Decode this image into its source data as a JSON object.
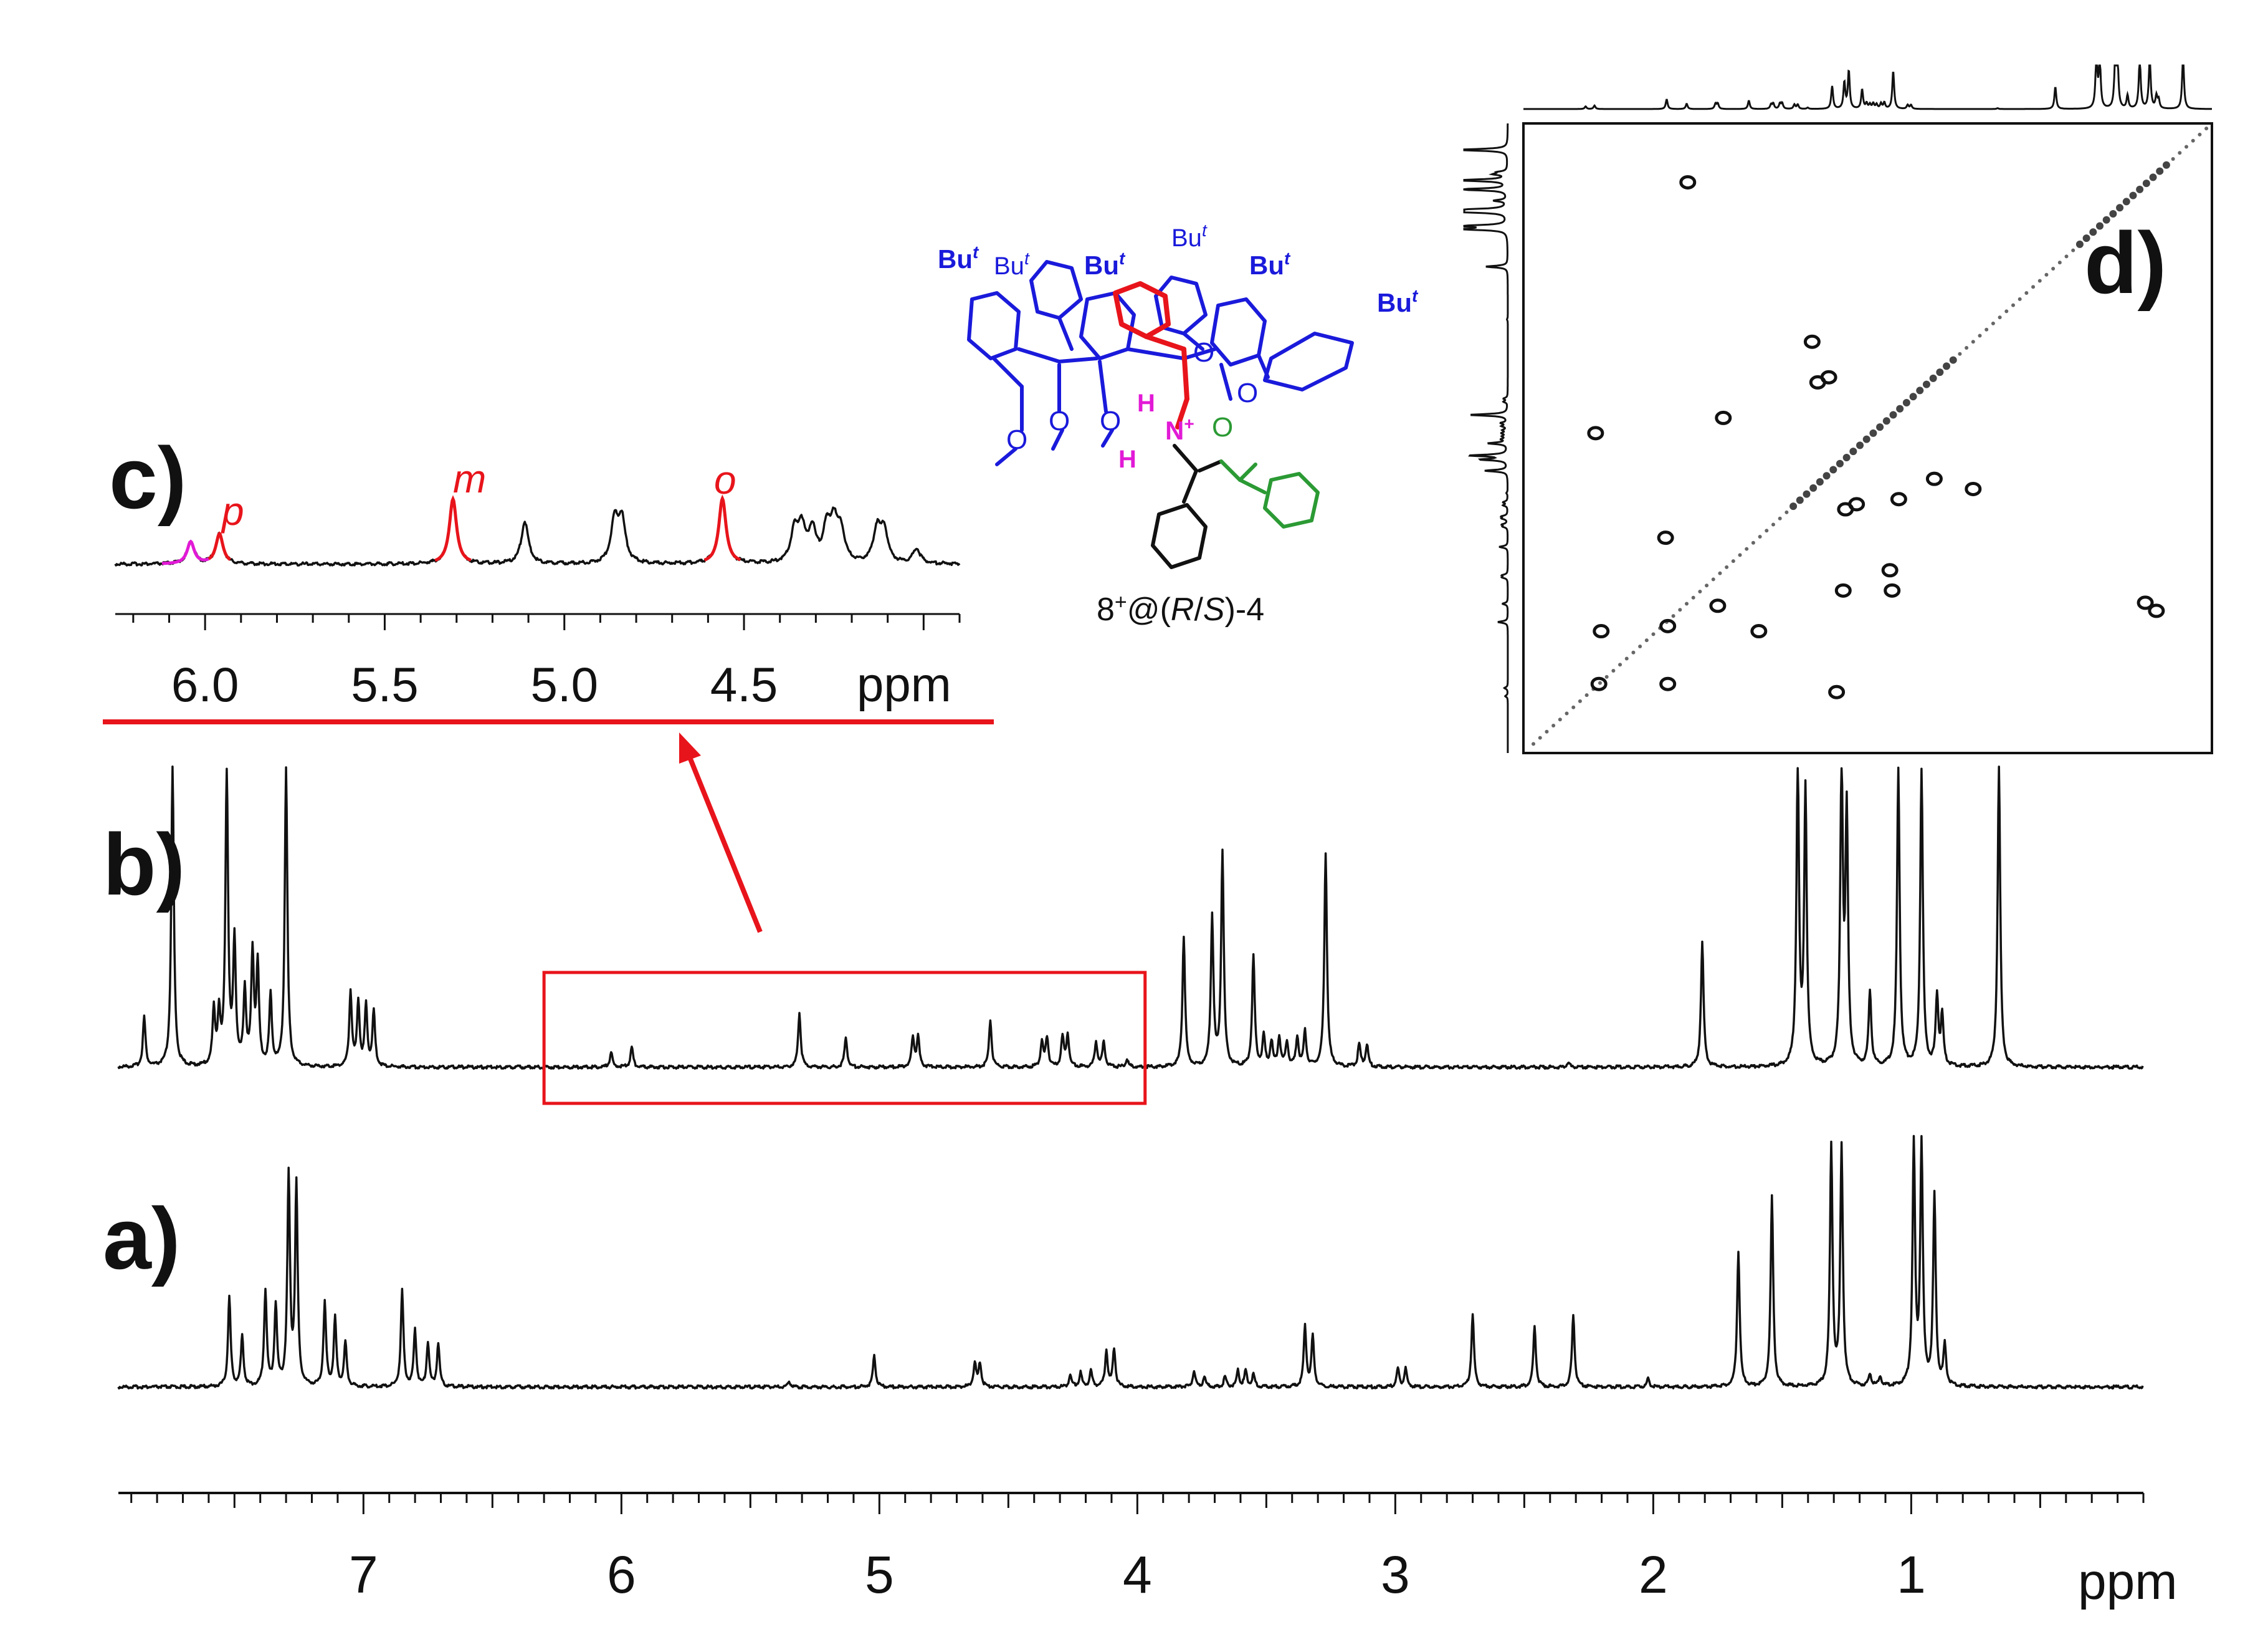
{
  "panels": {
    "a": "a)",
    "b": "b)",
    "c": "c)",
    "d": "d)"
  },
  "structure_label": {
    "prefix": "8",
    "sup": "+",
    "mid": "@(",
    "r": "R",
    "slash": "/",
    "s": "S",
    "suffix": ")-4"
  },
  "structure_text": {
    "but": "Bu",
    "but_sup": "t",
    "oxygen": "O",
    "h1": "H",
    "h2": "H",
    "nplus": "N"
  },
  "peak_labels": {
    "p": "p",
    "m": "m",
    "o": "o"
  },
  "colors": {
    "spectrum": "#111111",
    "highlight": "#e8141b",
    "magenta": "#e21ad6",
    "calixarene": "#1a1adb",
    "green": "#2b9a34"
  },
  "main_axis": {
    "unit": "ppm",
    "reversed": true,
    "range": [
      7.95,
      0.1
    ],
    "ticks": [
      {
        "v": 7,
        "label": "7"
      },
      {
        "v": 6,
        "label": "6"
      },
      {
        "v": 5,
        "label": "5"
      },
      {
        "v": 4,
        "label": "4"
      },
      {
        "v": 3,
        "label": "3"
      },
      {
        "v": 2,
        "label": "2"
      },
      {
        "v": 1,
        "label": "1"
      }
    ]
  },
  "inset_axis": {
    "unit": "ppm",
    "reversed": true,
    "range": [
      6.25,
      3.9
    ],
    "ticks": [
      {
        "v": 6.0,
        "label": "6.0"
      },
      {
        "v": 5.5,
        "label": "5.5"
      },
      {
        "v": 5.0,
        "label": "5.0"
      },
      {
        "v": 4.5,
        "label": "4.5"
      }
    ]
  },
  "zoom_region_ppm": [
    6.3,
    3.97
  ],
  "chart_data": [
    {
      "type": "line",
      "panel": "a)",
      "xlabel": "ppm",
      "xlim": [
        7.95,
        0.1
      ],
      "peaks": [
        {
          "x": 7.52,
          "h": 0.45
        },
        {
          "x": 7.47,
          "h": 0.25
        },
        {
          "x": 7.38,
          "h": 0.48
        },
        {
          "x": 7.34,
          "h": 0.4
        },
        {
          "x": 7.29,
          "h": 1.05
        },
        {
          "x": 7.26,
          "h": 1.0
        },
        {
          "x": 7.15,
          "h": 0.42
        },
        {
          "x": 7.11,
          "h": 0.34
        },
        {
          "x": 7.07,
          "h": 0.22
        },
        {
          "x": 6.85,
          "h": 0.48
        },
        {
          "x": 6.8,
          "h": 0.28
        },
        {
          "x": 6.75,
          "h": 0.22
        },
        {
          "x": 6.71,
          "h": 0.22
        },
        {
          "x": 5.35,
          "h": 0.03
        },
        {
          "x": 5.02,
          "h": 0.16
        },
        {
          "x": 4.63,
          "h": 0.12
        },
        {
          "x": 4.61,
          "h": 0.12
        },
        {
          "x": 4.26,
          "h": 0.06
        },
        {
          "x": 4.22,
          "h": 0.07
        },
        {
          "x": 4.18,
          "h": 0.08
        },
        {
          "x": 4.12,
          "h": 0.18
        },
        {
          "x": 4.09,
          "h": 0.19
        },
        {
          "x": 3.78,
          "h": 0.08
        },
        {
          "x": 3.74,
          "h": 0.05
        },
        {
          "x": 3.66,
          "h": 0.05
        },
        {
          "x": 3.61,
          "h": 0.08
        },
        {
          "x": 3.58,
          "h": 0.08
        },
        {
          "x": 3.55,
          "h": 0.06
        },
        {
          "x": 3.35,
          "h": 0.3
        },
        {
          "x": 3.32,
          "h": 0.25
        },
        {
          "x": 2.99,
          "h": 0.09
        },
        {
          "x": 2.96,
          "h": 0.09
        },
        {
          "x": 2.7,
          "h": 0.36
        },
        {
          "x": 2.46,
          "h": 0.3
        },
        {
          "x": 2.31,
          "h": 0.36
        },
        {
          "x": 2.02,
          "h": 0.04
        },
        {
          "x": 1.67,
          "h": 0.68
        },
        {
          "x": 1.54,
          "h": 0.95
        },
        {
          "x": 1.31,
          "h": 1.2
        },
        {
          "x": 1.27,
          "h": 1.2
        },
        {
          "x": 1.16,
          "h": 0.06
        },
        {
          "x": 1.12,
          "h": 0.05
        },
        {
          "x": 0.99,
          "h": 1.2
        },
        {
          "x": 0.96,
          "h": 1.2
        },
        {
          "x": 0.91,
          "h": 0.95
        },
        {
          "x": 0.87,
          "h": 0.2
        }
      ]
    },
    {
      "type": "line",
      "panel": "b)",
      "xlabel": "ppm",
      "xlim": [
        7.95,
        0.1
      ],
      "peaks": [
        {
          "x": 7.85,
          "h": 0.2
        },
        {
          "x": 7.74,
          "h": 1.2
        },
        {
          "x": 7.58,
          "h": 0.22
        },
        {
          "x": 7.56,
          "h": 0.2
        },
        {
          "x": 7.53,
          "h": 1.2
        },
        {
          "x": 7.5,
          "h": 0.5
        },
        {
          "x": 7.46,
          "h": 0.3
        },
        {
          "x": 7.43,
          "h": 0.45
        },
        {
          "x": 7.41,
          "h": 0.4
        },
        {
          "x": 7.36,
          "h": 0.28
        },
        {
          "x": 7.3,
          "h": 1.2
        },
        {
          "x": 7.05,
          "h": 0.3
        },
        {
          "x": 7.02,
          "h": 0.26
        },
        {
          "x": 6.99,
          "h": 0.24
        },
        {
          "x": 6.96,
          "h": 0.22
        },
        {
          "x": 6.04,
          "h": 0.06
        },
        {
          "x": 5.96,
          "h": 0.08
        },
        {
          "x": 5.31,
          "h": 0.22
        },
        {
          "x": 5.13,
          "h": 0.12
        },
        {
          "x": 4.87,
          "h": 0.12
        },
        {
          "x": 4.85,
          "h": 0.12
        },
        {
          "x": 4.57,
          "h": 0.19
        },
        {
          "x": 4.37,
          "h": 0.1
        },
        {
          "x": 4.35,
          "h": 0.12
        },
        {
          "x": 4.29,
          "h": 0.12
        },
        {
          "x": 4.27,
          "h": 0.13
        },
        {
          "x": 4.16,
          "h": 0.1
        },
        {
          "x": 4.13,
          "h": 0.1
        },
        {
          "x": 4.04,
          "h": 0.03
        },
        {
          "x": 3.82,
          "h": 0.52
        },
        {
          "x": 3.71,
          "h": 0.6
        },
        {
          "x": 3.67,
          "h": 0.86
        },
        {
          "x": 3.55,
          "h": 0.44
        },
        {
          "x": 3.51,
          "h": 0.12
        },
        {
          "x": 3.48,
          "h": 0.1
        },
        {
          "x": 3.45,
          "h": 0.12
        },
        {
          "x": 3.42,
          "h": 0.1
        },
        {
          "x": 3.38,
          "h": 0.12
        },
        {
          "x": 3.35,
          "h": 0.14
        },
        {
          "x": 3.27,
          "h": 0.86
        },
        {
          "x": 3.14,
          "h": 0.09
        },
        {
          "x": 3.11,
          "h": 0.09
        },
        {
          "x": 2.33,
          "h": 0.02
        },
        {
          "x": 1.81,
          "h": 0.5
        },
        {
          "x": 1.44,
          "h": 1.2
        },
        {
          "x": 1.41,
          "h": 1.1
        },
        {
          "x": 1.27,
          "h": 1.2
        },
        {
          "x": 1.25,
          "h": 1.0
        },
        {
          "x": 1.16,
          "h": 0.3
        },
        {
          "x": 1.05,
          "h": 1.2
        },
        {
          "x": 0.96,
          "h": 1.2
        },
        {
          "x": 0.9,
          "h": 0.28
        },
        {
          "x": 0.88,
          "h": 0.2
        },
        {
          "x": 0.66,
          "h": 1.2
        }
      ]
    },
    {
      "type": "line",
      "panel": "c)",
      "xlabel": "ppm",
      "xlim": [
        6.25,
        3.9
      ],
      "peaks": [
        {
          "x": 6.04,
          "h": 0.22
        },
        {
          "x": 5.96,
          "h": 0.3
        },
        {
          "x": 5.31,
          "h": 0.65
        },
        {
          "x": 5.11,
          "h": 0.42
        },
        {
          "x": 4.86,
          "h": 0.42
        },
        {
          "x": 4.84,
          "h": 0.42
        },
        {
          "x": 4.56,
          "h": 0.65
        },
        {
          "x": 4.36,
          "h": 0.3
        },
        {
          "x": 4.34,
          "h": 0.35
        },
        {
          "x": 4.31,
          "h": 0.32
        },
        {
          "x": 4.27,
          "h": 0.32
        },
        {
          "x": 4.25,
          "h": 0.38
        },
        {
          "x": 4.23,
          "h": 0.3
        },
        {
          "x": 4.13,
          "h": 0.33
        },
        {
          "x": 4.11,
          "h": 0.33
        },
        {
          "x": 4.02,
          "h": 0.15
        }
      ],
      "annotations": [
        {
          "x": 5.96,
          "text": "p"
        },
        {
          "x": 5.31,
          "text": "m"
        },
        {
          "x": 4.56,
          "text": "o"
        }
      ]
    },
    {
      "type": "scatter",
      "panel": "d)",
      "xlim": [
        6.6,
        0.4
      ],
      "ylim": [
        0.4,
        6.6
      ],
      "diagonal": [
        0.45,
        6.55
      ],
      "cross_peaks": [
        {
          "x": 5.12,
          "y": 0.98
        },
        {
          "x": 1.0,
          "y": 5.12
        },
        {
          "x": 4.0,
          "y": 2.55
        },
        {
          "x": 3.95,
          "y": 2.95
        },
        {
          "x": 3.85,
          "y": 2.9
        },
        {
          "x": 4.8,
          "y": 3.3
        },
        {
          "x": 2.55,
          "y": 4.0
        },
        {
          "x": 2.9,
          "y": 3.9
        },
        {
          "x": 5.32,
          "y": 4.48
        },
        {
          "x": 5.95,
          "y": 3.45
        },
        {
          "x": 5.9,
          "y": 5.4
        },
        {
          "x": 5.3,
          "y": 5.35
        },
        {
          "x": 4.85,
          "y": 5.15
        },
        {
          "x": 4.48,
          "y": 5.4
        },
        {
          "x": 3.3,
          "y": 4.8
        },
        {
          "x": 3.7,
          "y": 4.2
        },
        {
          "x": 3.6,
          "y": 4.15
        },
        {
          "x": 3.72,
          "y": 5.0
        },
        {
          "x": 3.28,
          "y": 5.0
        },
        {
          "x": 3.22,
          "y": 4.1
        },
        {
          "x": 5.3,
          "y": 5.92
        },
        {
          "x": 5.92,
          "y": 5.92
        },
        {
          "x": 3.78,
          "y": 6.0
        },
        {
          "x": 0.9,
          "y": 5.2
        }
      ]
    }
  ]
}
